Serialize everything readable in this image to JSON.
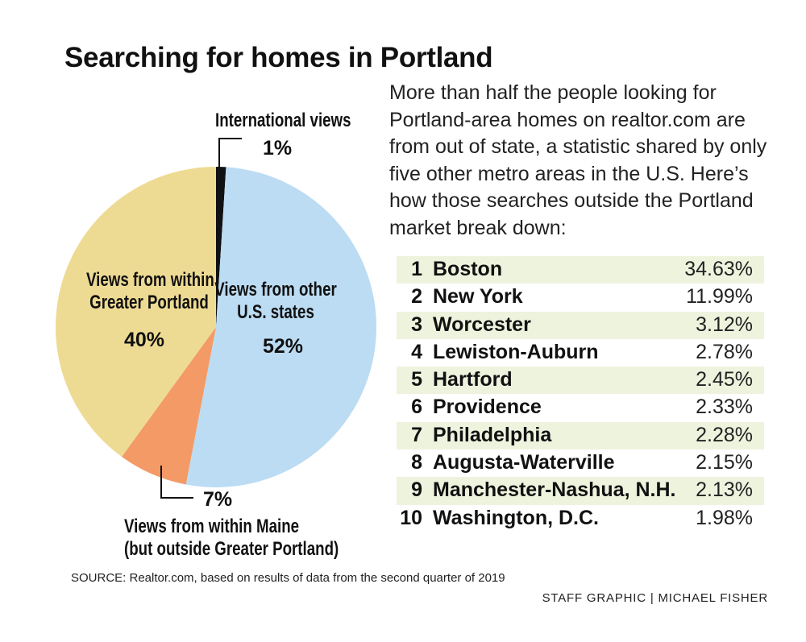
{
  "title": "Searching for homes in Portland",
  "intro": "More than half the people looking for Portland-area homes on realtor.com are from out of state, a statistic shared by only five other metro areas in the U.S. Here’s how those searches outside the Portland market break down:",
  "chart_data": [
    {
      "type": "pie",
      "title": "Searching for homes in Portland",
      "slices": [
        {
          "label": "International views",
          "value": 1,
          "value_label": "1%",
          "color": "#111111"
        },
        {
          "label_lines": [
            "Views from other",
            "U.S. states"
          ],
          "label": "Views from other U.S. states",
          "value": 52,
          "value_label": "52%",
          "color": "#bcdcf3"
        },
        {
          "label_lines": [
            "Views from within Maine",
            "(but outside Greater Portland)"
          ],
          "label": "Views from within Maine (but outside Greater Portland)",
          "value": 7,
          "value_label": "7%",
          "color": "#f39a66"
        },
        {
          "label_lines": [
            "Views from within",
            "Greater Portland"
          ],
          "label": "Views from within Greater Portland",
          "value": 40,
          "value_label": "40%",
          "color": "#eedb93"
        }
      ]
    },
    {
      "type": "table",
      "row_shade": "#eef3de",
      "rows": [
        {
          "rank": "1",
          "city": "Boston",
          "value": "34.63%"
        },
        {
          "rank": "2",
          "city": "New York",
          "value": "11.99%"
        },
        {
          "rank": "3",
          "city": "Worcester",
          "value": "3.12%"
        },
        {
          "rank": "4",
          "city": "Lewiston-Auburn",
          "value": "2.78%"
        },
        {
          "rank": "5",
          "city": "Hartford",
          "value": "2.45%"
        },
        {
          "rank": "6",
          "city": "Providence",
          "value": "2.33%"
        },
        {
          "rank": "7",
          "city": "Philadelphia",
          "value": "2.28%"
        },
        {
          "rank": "8",
          "city": "Augusta-Waterville",
          "value": "2.15%"
        },
        {
          "rank": "9",
          "city": "Manchester-Nashua, N.H.",
          "value": "2.13%"
        },
        {
          "rank": "10",
          "city": "Washington, D.C.",
          "value": "1.98%"
        }
      ]
    }
  ],
  "source": "SOURCE: Realtor.com, based on results of data from the second quarter of 2019",
  "credit": "STAFF GRAPHIC | MICHAEL FISHER"
}
